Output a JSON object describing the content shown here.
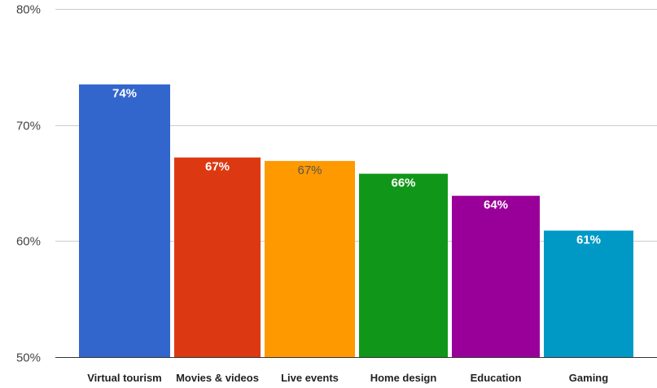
{
  "chart_data": {
    "type": "bar",
    "categories": [
      "Virtual tourism",
      "Movies & videos",
      "Live events",
      "Home design",
      "Education",
      "Gaming"
    ],
    "values": [
      73.5,
      67.2,
      66.9,
      65.8,
      63.9,
      60.9
    ],
    "data_labels": [
      "74%",
      "67%",
      "67%",
      "66%",
      "64%",
      "61%"
    ],
    "colors": [
      "#3366cc",
      "#dc3912",
      "#ff9900",
      "#109618",
      "#990099",
      "#0099c6"
    ],
    "label_colors": [
      "#ffffff",
      "#ffffff",
      "#555555",
      "#ffffff",
      "#ffffff",
      "#ffffff"
    ],
    "ylim": [
      50,
      80
    ],
    "yticks": [
      50,
      60,
      70,
      80
    ],
    "ytick_labels": [
      "50%",
      "60%",
      "70%",
      "80%"
    ],
    "grid": true,
    "title": "",
    "xlabel": "",
    "ylabel": ""
  }
}
